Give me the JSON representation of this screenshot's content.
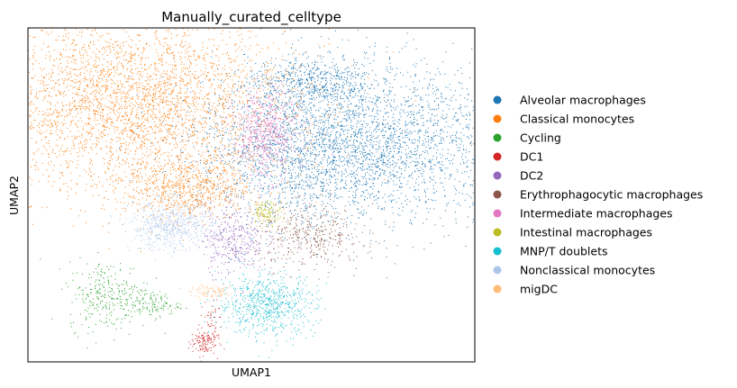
{
  "chart_data": {
    "type": "scatter",
    "title": "Manually_curated_celltype",
    "xlabel": "UMAP1",
    "ylabel": "UMAP2",
    "x_ticks": false,
    "y_ticks": false,
    "grid": false,
    "legend_position": "right",
    "series": [
      {
        "name": "Alveolar macrophages",
        "color": "#1f77b4",
        "clusters": [
          {
            "cx": 7.5,
            "cy": 6.3,
            "sx": 1.8,
            "sy": 1.15,
            "n": 2600
          },
          {
            "cx": 5.6,
            "cy": 6.1,
            "sx": 1.1,
            "sy": 1.0,
            "n": 1300
          },
          {
            "cx": 5.9,
            "cy": 8.1,
            "sx": 0.7,
            "sy": 0.35,
            "n": 500
          }
        ]
      },
      {
        "name": "Classical monocytes",
        "color": "#ff7f0e",
        "clusters": [
          {
            "cx": 2.0,
            "cy": 7.4,
            "sx": 1.75,
            "sy": 1.25,
            "n": 3600
          },
          {
            "cx": 3.2,
            "cy": 5.0,
            "sx": 0.7,
            "sy": 0.45,
            "n": 700
          }
        ]
      },
      {
        "name": "Cycling",
        "color": "#2ca02c",
        "clusters": [
          {
            "cx": 1.4,
            "cy": 1.9,
            "sx": 0.45,
            "sy": 0.5,
            "n": 300
          },
          {
            "cx": 2.4,
            "cy": 1.65,
            "sx": 0.3,
            "sy": 0.18,
            "n": 110
          }
        ]
      },
      {
        "name": "DC1",
        "color": "#d62728",
        "clusters": [
          {
            "cx": 3.5,
            "cy": 0.55,
            "sx": 0.15,
            "sy": 0.18,
            "n": 110
          },
          {
            "cx": 3.7,
            "cy": 1.1,
            "sx": 0.12,
            "sy": 0.35,
            "n": 60
          }
        ]
      },
      {
        "name": "DC2",
        "color": "#9467bd",
        "clusters": [
          {
            "cx": 4.2,
            "cy": 3.55,
            "sx": 0.35,
            "sy": 0.5,
            "n": 380
          }
        ]
      },
      {
        "name": "Erythrophagocytic macrophages",
        "color": "#8c564b",
        "clusters": [
          {
            "cx": 5.9,
            "cy": 3.6,
            "sx": 0.6,
            "sy": 0.45,
            "n": 420
          }
        ]
      },
      {
        "name": "Intermediate macrophages",
        "color": "#e377c2",
        "clusters": [
          {
            "cx": 4.9,
            "cy": 6.55,
            "sx": 0.35,
            "sy": 0.65,
            "n": 600
          }
        ]
      },
      {
        "name": "Intestinal macrophages",
        "color": "#bcbd22",
        "clusters": [
          {
            "cx": 4.95,
            "cy": 4.3,
            "sx": 0.17,
            "sy": 0.17,
            "n": 130
          }
        ]
      },
      {
        "name": "MNP/T doublets",
        "color": "#17becf",
        "clusters": [
          {
            "cx": 4.95,
            "cy": 1.65,
            "sx": 0.55,
            "sy": 0.45,
            "n": 700
          }
        ]
      },
      {
        "name": "Nonclassical monocytes",
        "color": "#aec7e8",
        "clusters": [
          {
            "cx": 2.8,
            "cy": 3.9,
            "sx": 0.45,
            "sy": 0.35,
            "n": 600
          }
        ]
      },
      {
        "name": "migDC",
        "color": "#ffbb78",
        "clusters": [
          {
            "cx": 3.75,
            "cy": 2.0,
            "sx": 0.25,
            "sy": 0.09,
            "n": 90
          }
        ]
      }
    ],
    "xlim": [
      -0.4,
      9.6
    ],
    "ylim": [
      0.0,
      9.6
    ]
  }
}
